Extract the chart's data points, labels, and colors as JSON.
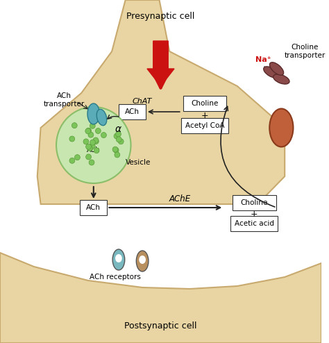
{
  "bg_color": "#ffffff",
  "cell_fill": "#e8d5a3",
  "cell_edge": "#c8a96e",
  "presynaptic_label": "Presynaptic cell",
  "postsynaptic_label": "Postsynaptic cell",
  "chat_label": "ChAT",
  "choline_label": "Choline",
  "acetyl_coa_label": "Acetyl CoA",
  "ache_label": "AChE",
  "ach_label": "ACh",
  "vesicle_label": "Vesicle",
  "ach_transporter_label": "ACh\ntransporter",
  "choline_product_label": "Choline",
  "acetic_acid_label": "Acetic acid",
  "ach_receptors_label": "ACh receptors",
  "na_label": "Na⁺",
  "choline_transporter_label": "Choline\ntransporter",
  "vesicle_fill": "#c8e6b0",
  "vesicle_edge": "#8abe68",
  "box_fill": "#ffffff",
  "box_edge": "#333333",
  "arrow_color": "#222222",
  "red_arrow_color": "#cc1111",
  "na_color": "#cc1111"
}
